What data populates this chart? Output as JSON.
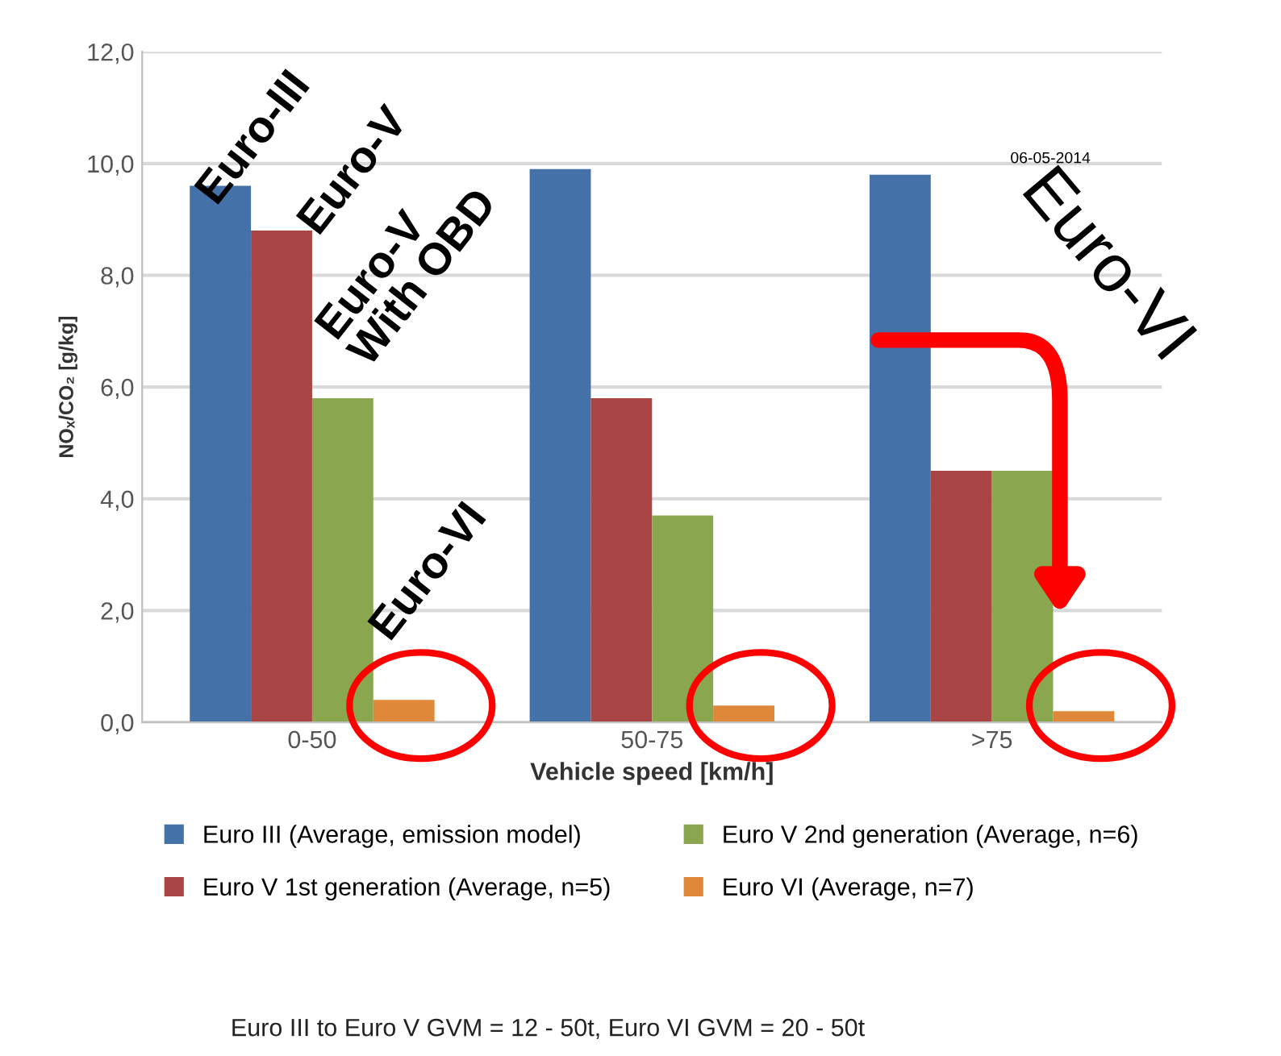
{
  "chart_data": {
    "type": "bar",
    "xlabel": "Vehicle speed [km/h]",
    "ylabel": "NOₓ/CO₂ [g/kg]",
    "categories": [
      "0-50",
      "50-75",
      ">75"
    ],
    "series": [
      {
        "name": "Euro III (Average, emission model)",
        "color": "#4472a8",
        "values": [
          9.6,
          9.9,
          9.8
        ]
      },
      {
        "name": "Euro V 1st generation (Average, n=5)",
        "color": "#a94545",
        "values": [
          8.8,
          5.8,
          4.5
        ]
      },
      {
        "name": "Euro V 2nd generation (Average, n=6)",
        "color": "#8aa64e",
        "values": [
          5.8,
          3.7,
          4.5
        ]
      },
      {
        "name": "Euro VI (Average, n=7)",
        "color": "#e0883a",
        "values": [
          0.4,
          0.3,
          0.2
        ]
      }
    ],
    "ylim": [
      0,
      12
    ],
    "yticks": [
      {
        "value": 0,
        "label": "0,0"
      },
      {
        "value": 2,
        "label": "2,0"
      },
      {
        "value": 4,
        "label": "4,0"
      },
      {
        "value": 6,
        "label": "6,0"
      },
      {
        "value": 8,
        "label": "8,0"
      },
      {
        "value": 10,
        "label": "10,0"
      },
      {
        "value": 12,
        "label": "12,0"
      }
    ],
    "grid": "y",
    "legend": "bottom",
    "annotations": [
      "Euro-III",
      "Euro-V",
      "Euro-V\nWith OBD",
      "Euro-VI",
      "Euro-VI",
      "06-05-2014",
      "Euro III to Euro V GVM = 12 - 50t, Euro VI GVM = 20 - 50t"
    ]
  }
}
